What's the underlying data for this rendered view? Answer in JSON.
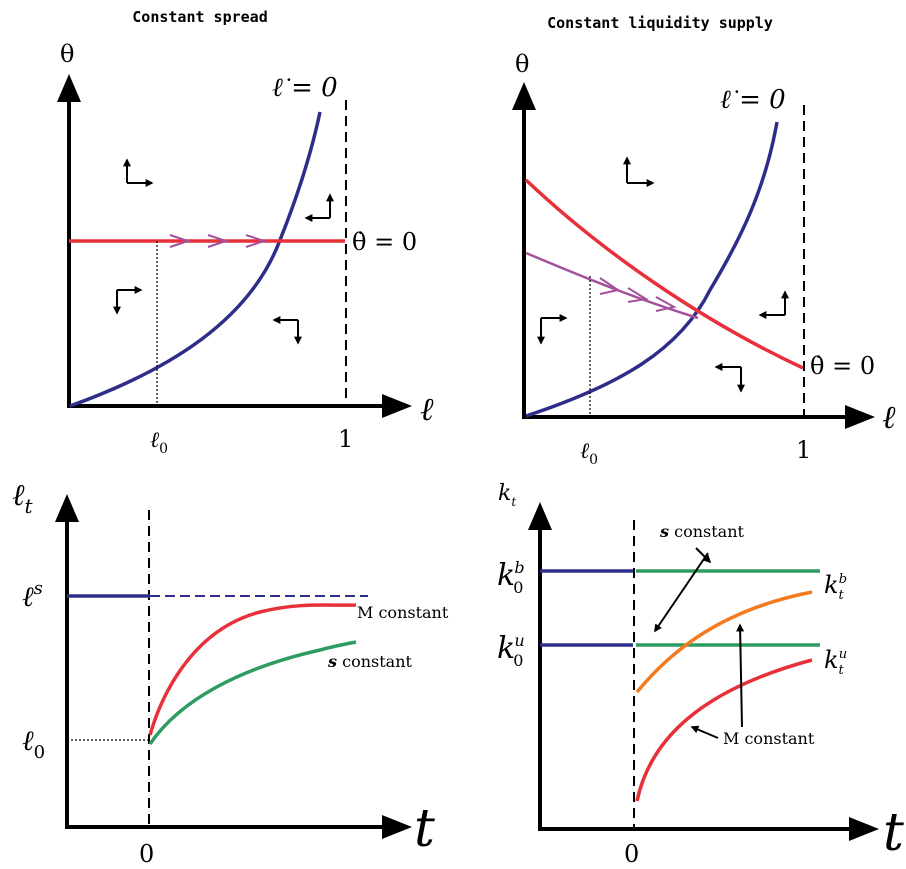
{
  "panel_tl": {
    "title": "Constant spread",
    "y_label": "θ",
    "x_label": "ℓ",
    "curve_label": "ℓ̇ = 0",
    "line_label": "θ̇ = 0",
    "tick_l0": "ℓ",
    "tick_l0_sub": "0",
    "tick_one": "1"
  },
  "panel_tr": {
    "title": "Constant liquidity supply",
    "y_label": "θ",
    "x_label": "ℓ",
    "curve_label": "ℓ̇ = 0",
    "line_label": "θ̇ = 0",
    "tick_l0": "ℓ",
    "tick_l0_sub": "0",
    "tick_one": "1"
  },
  "panel_bl": {
    "y_label": "ℓ",
    "y_label_sub": "t",
    "x_label": "t",
    "ls_label": "ℓ",
    "ls_sup": "s",
    "l0_label": "ℓ",
    "l0_sub": "0",
    "zero": "0",
    "m_constant": "M constant",
    "s_constant_s": "s",
    "s_constant_word": "constant"
  },
  "panel_br": {
    "y_label": "k",
    "y_label_sub": "t",
    "x_label": "t",
    "k0b": "k",
    "k0b_sub": "0",
    "k0b_sup": "b",
    "k0u": "k",
    "k0u_sub": "0",
    "k0u_sup": "u",
    "ktb": "k",
    "ktb_sub": "t",
    "ktb_sup": "b",
    "ktu": "k",
    "ktu_sub": "t",
    "ktu_sup": "u",
    "zero": "0",
    "s_constant_s": "s",
    "s_constant_word": "constant",
    "m_constant": "M constant"
  },
  "colors": {
    "blue": "#2e2e8a",
    "red": "#e8303a",
    "green": "#2e9b62",
    "orange": "#f47a1e",
    "purple": "#a4509c"
  }
}
